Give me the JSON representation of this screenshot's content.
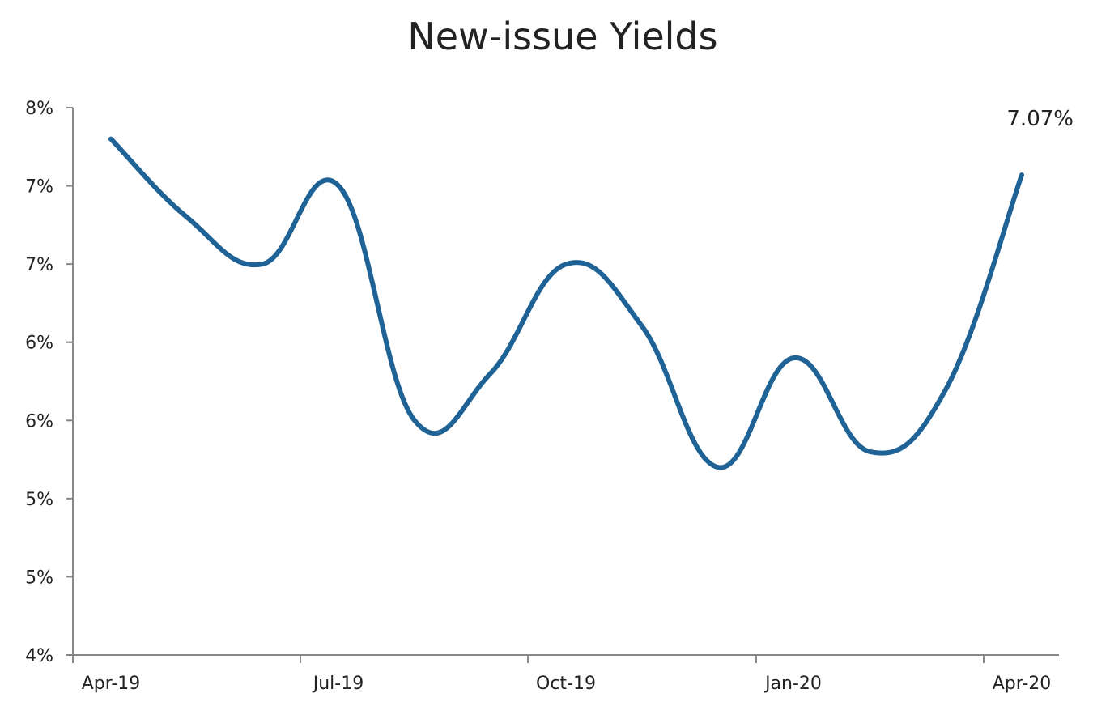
{
  "chart_data": {
    "type": "line",
    "title": "New-issue Yields",
    "xlabel": "",
    "ylabel": "",
    "x_tick_labels": [
      "Apr-19",
      "Jul-19",
      "Oct-19",
      "Jan-20",
      "Apr-20"
    ],
    "y_tick_labels": [
      "4%",
      "5%",
      "5%",
      "6%",
      "6%",
      "7%",
      "7%",
      "8%"
    ],
    "ylim": [
      4.0,
      7.5
    ],
    "grid": false,
    "legend": "none",
    "series": [
      {
        "x": [
          "Apr-19",
          "May-19",
          "Jun-19",
          "Jul-19",
          "Aug-19",
          "Sep-19",
          "Oct-19",
          "Nov-19",
          "Dec-19",
          "Jan-20",
          "Feb-20",
          "Mar-20",
          "Apr-20"
        ],
        "values": [
          7.3,
          6.8,
          6.5,
          7.0,
          5.5,
          5.8,
          6.5,
          6.1,
          5.2,
          5.9,
          5.3,
          5.7,
          7.07
        ],
        "color": "#1f6296"
      }
    ],
    "data_labels": [
      {
        "x": "Apr-20",
        "text": "7.07%"
      }
    ]
  }
}
